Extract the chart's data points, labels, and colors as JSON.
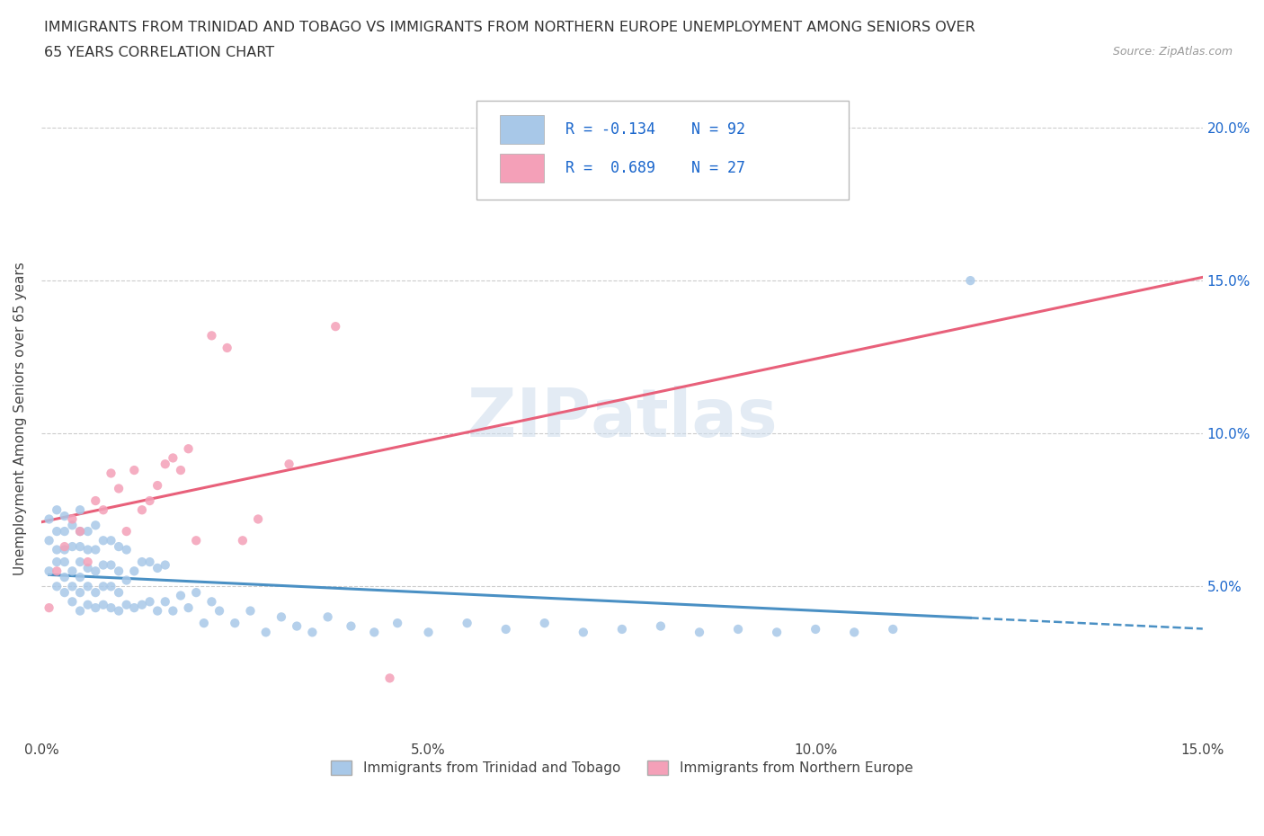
{
  "title_line1": "IMMIGRANTS FROM TRINIDAD AND TOBAGO VS IMMIGRANTS FROM NORTHERN EUROPE UNEMPLOYMENT AMONG SENIORS OVER",
  "title_line2": "65 YEARS CORRELATION CHART",
  "source_text": "Source: ZipAtlas.com",
  "ylabel": "Unemployment Among Seniors over 65 years",
  "xlim": [
    0.0,
    0.15
  ],
  "ylim": [
    0.0,
    0.21
  ],
  "xticks": [
    0.0,
    0.05,
    0.1,
    0.15
  ],
  "xtick_labels": [
    "0.0%",
    "5.0%",
    "10.0%",
    "15.0%"
  ],
  "yticks": [
    0.05,
    0.1,
    0.15,
    0.2
  ],
  "ytick_labels": [
    "5.0%",
    "10.0%",
    "15.0%",
    "20.0%"
  ],
  "series1_color": "#a8c8e8",
  "series2_color": "#f4a0b8",
  "series1_label": "Immigrants from Trinidad and Tobago",
  "series2_label": "Immigrants from Northern Europe",
  "series1_line_color": "#4a90c4",
  "series2_line_color": "#e8607a",
  "R1": -0.134,
  "N1": 92,
  "R2": 0.689,
  "N2": 27,
  "legend_color": "#1a66cc",
  "series1_x": [
    0.001,
    0.001,
    0.001,
    0.002,
    0.002,
    0.002,
    0.002,
    0.002,
    0.003,
    0.003,
    0.003,
    0.003,
    0.003,
    0.003,
    0.004,
    0.004,
    0.004,
    0.004,
    0.004,
    0.005,
    0.005,
    0.005,
    0.005,
    0.005,
    0.005,
    0.005,
    0.006,
    0.006,
    0.006,
    0.006,
    0.006,
    0.007,
    0.007,
    0.007,
    0.007,
    0.007,
    0.008,
    0.008,
    0.008,
    0.008,
    0.009,
    0.009,
    0.009,
    0.009,
    0.01,
    0.01,
    0.01,
    0.01,
    0.011,
    0.011,
    0.011,
    0.012,
    0.012,
    0.013,
    0.013,
    0.014,
    0.014,
    0.015,
    0.015,
    0.016,
    0.016,
    0.017,
    0.018,
    0.019,
    0.02,
    0.021,
    0.022,
    0.023,
    0.025,
    0.027,
    0.029,
    0.031,
    0.033,
    0.035,
    0.037,
    0.04,
    0.043,
    0.046,
    0.05,
    0.055,
    0.06,
    0.065,
    0.07,
    0.075,
    0.08,
    0.085,
    0.09,
    0.095,
    0.1,
    0.105,
    0.11,
    0.12
  ],
  "series1_y": [
    0.055,
    0.065,
    0.072,
    0.05,
    0.058,
    0.062,
    0.068,
    0.075,
    0.048,
    0.053,
    0.058,
    0.062,
    0.068,
    0.073,
    0.045,
    0.05,
    0.055,
    0.063,
    0.07,
    0.042,
    0.048,
    0.053,
    0.058,
    0.063,
    0.068,
    0.075,
    0.044,
    0.05,
    0.056,
    0.062,
    0.068,
    0.043,
    0.048,
    0.055,
    0.062,
    0.07,
    0.044,
    0.05,
    0.057,
    0.065,
    0.043,
    0.05,
    0.057,
    0.065,
    0.042,
    0.048,
    0.055,
    0.063,
    0.044,
    0.052,
    0.062,
    0.043,
    0.055,
    0.044,
    0.058,
    0.045,
    0.058,
    0.042,
    0.056,
    0.045,
    0.057,
    0.042,
    0.047,
    0.043,
    0.048,
    0.038,
    0.045,
    0.042,
    0.038,
    0.042,
    0.035,
    0.04,
    0.037,
    0.035,
    0.04,
    0.037,
    0.035,
    0.038,
    0.035,
    0.038,
    0.036,
    0.038,
    0.035,
    0.036,
    0.037,
    0.035,
    0.036,
    0.035,
    0.036,
    0.035,
    0.036,
    0.15
  ],
  "series2_x": [
    0.001,
    0.002,
    0.003,
    0.004,
    0.005,
    0.006,
    0.007,
    0.008,
    0.009,
    0.01,
    0.011,
    0.012,
    0.013,
    0.014,
    0.015,
    0.016,
    0.017,
    0.018,
    0.019,
    0.02,
    0.022,
    0.024,
    0.026,
    0.028,
    0.032,
    0.038,
    0.045
  ],
  "series2_y": [
    0.043,
    0.055,
    0.063,
    0.072,
    0.068,
    0.058,
    0.078,
    0.075,
    0.087,
    0.082,
    0.068,
    0.088,
    0.075,
    0.078,
    0.083,
    0.09,
    0.092,
    0.088,
    0.095,
    0.065,
    0.132,
    0.128,
    0.065,
    0.072,
    0.09,
    0.135,
    0.02
  ]
}
